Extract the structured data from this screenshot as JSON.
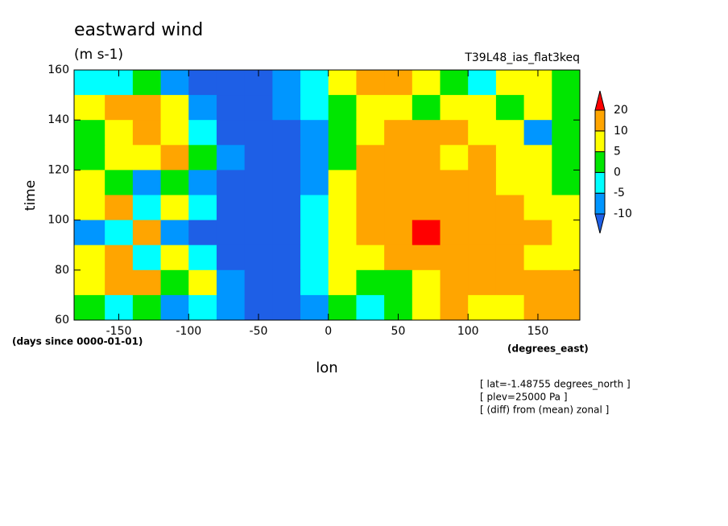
{
  "chart_data": {
    "type": "contour",
    "title": "eastward wind",
    "subtitle": "(m s-1)",
    "dataset": "T39L48_ias_flat3keq",
    "y_label": "time",
    "x_label": "lon",
    "y_units": "(days since 0000-01-01)",
    "x_units": "(degrees_east)",
    "notes": [
      "[ lat=-1.48755 degrees_north ]",
      "[ plev=25000 Pa ]",
      "[ (diff) from (mean) zonal ]"
    ],
    "xlim": [
      -182,
      180
    ],
    "ylim": [
      60,
      160
    ],
    "xticks": [
      -150,
      -100,
      -50,
      0,
      50,
      100,
      150
    ],
    "yticks": [
      60,
      80,
      100,
      120,
      140,
      160
    ],
    "levels": [
      -10,
      -5,
      0,
      5,
      10,
      20
    ],
    "colors": [
      "#1e5fe6",
      "#0096ff",
      "#00ffff",
      "#00e600",
      "#ffff00",
      "#ffa500",
      "#ff0000"
    ],
    "x": [
      -170,
      -150,
      -130,
      -110,
      -90,
      -70,
      -50,
      -30,
      -10,
      10,
      30,
      50,
      70,
      90,
      110,
      130,
      150,
      170
    ],
    "y": [
      155,
      145,
      135,
      125,
      115,
      105,
      95,
      85,
      75,
      65
    ],
    "z": [
      [
        -2,
        -3,
        2,
        -6,
        -12,
        -12,
        -12,
        -8,
        -3,
        8,
        12,
        10,
        6,
        3,
        -2,
        8,
        6,
        0
      ],
      [
        6,
        12,
        17,
        8,
        -6,
        -12,
        -12,
        -8,
        -2,
        3,
        8,
        6,
        4,
        8,
        5,
        0,
        6,
        4
      ],
      [
        3,
        6,
        12,
        8,
        -4,
        -12,
        -15,
        -12,
        -6,
        2,
        8,
        10,
        12,
        12,
        8,
        5,
        -8,
        4
      ],
      [
        2,
        8,
        6,
        10,
        3,
        -8,
        -15,
        -15,
        -8,
        2,
        10,
        12,
        12,
        8,
        12,
        8,
        6,
        3
      ],
      [
        8,
        2,
        -6,
        3,
        -8,
        -15,
        -15,
        -15,
        -6,
        5,
        12,
        14,
        15,
        12,
        10,
        8,
        6,
        2
      ],
      [
        8,
        12,
        -4,
        8,
        -4,
        -15,
        -15,
        -12,
        -3,
        5,
        17,
        14,
        12,
        14,
        12,
        10,
        8,
        6
      ],
      [
        -6,
        -2,
        10,
        -8,
        -12,
        -15,
        -15,
        -12,
        -4,
        6,
        12,
        14,
        21,
        14,
        15,
        12,
        10,
        8
      ],
      [
        8,
        12,
        -4,
        6,
        -4,
        -12,
        -12,
        -12,
        -2,
        8,
        6,
        10,
        14,
        17,
        13,
        12,
        8,
        6
      ],
      [
        6,
        12,
        10,
        3,
        8,
        -6,
        -12,
        -12,
        -3,
        6,
        3,
        2,
        8,
        10,
        12,
        14,
        12,
        10
      ],
      [
        2,
        -4,
        0,
        -6,
        -2,
        -8,
        -12,
        -12,
        -6,
        4,
        -2,
        2,
        8,
        10,
        6,
        8,
        12,
        10
      ]
    ]
  }
}
